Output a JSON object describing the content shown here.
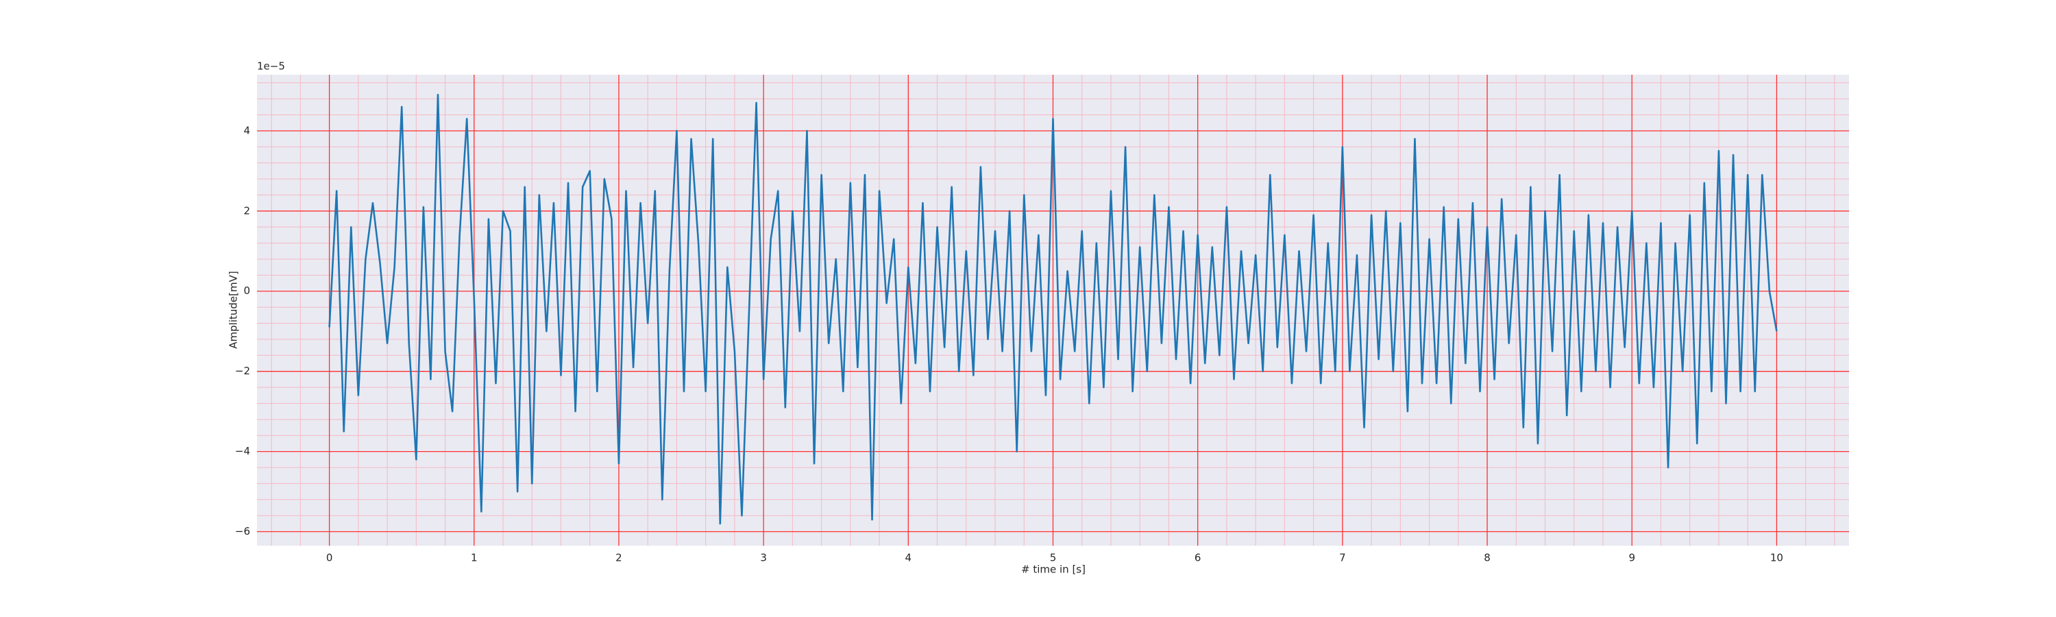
{
  "chart_data": {
    "type": "line",
    "x_label": "# time in [s]",
    "y_label": "Amplitude[mV]",
    "y_offset_label": "1e−5",
    "xlim": [
      -0.5,
      10.5
    ],
    "ylim": [
      -6.35,
      5.4
    ],
    "xticks": [
      0,
      1,
      2,
      3,
      4,
      5,
      6,
      7,
      8,
      9,
      10
    ],
    "yticks": [
      {
        "value": -6,
        "label": "−6"
      },
      {
        "value": -4,
        "label": "−4"
      },
      {
        "value": -2,
        "label": "−2"
      },
      0,
      2,
      4
    ],
    "x_minor_ticks": [
      -0.4,
      -0.2,
      0.2,
      0.4,
      0.6,
      0.8,
      1.2,
      1.4,
      1.6,
      1.8,
      2.2,
      2.4,
      2.6,
      2.8,
      3.2,
      3.4,
      3.6,
      3.8,
      4.2,
      4.4,
      4.6,
      4.8,
      5.2,
      5.4,
      5.6,
      5.8,
      6.2,
      6.4,
      6.6,
      6.8,
      7.2,
      7.4,
      7.6,
      7.8,
      8.2,
      8.4,
      8.6,
      8.8,
      9.2,
      9.4,
      9.6,
      9.8,
      10.2,
      10.4
    ],
    "y_minor_ticks": [
      -5.6,
      -5.2,
      -4.8,
      -4.4,
      -3.6,
      -3.2,
      -2.8,
      -2.4,
      -1.6,
      -1.2,
      -0.8,
      -0.4,
      0.4,
      0.8,
      1.2,
      1.6,
      2.4,
      2.8,
      3.2,
      3.6,
      4.4,
      4.8,
      5.2
    ],
    "grid": true,
    "grid_color": "#ff3030",
    "minor_grid_color": "#f5b8c4",
    "background": "#eaeaf2",
    "series": [
      {
        "color": "#1f77b4",
        "x": [
          0,
          0.05,
          0.1,
          0.15,
          0.2,
          0.25,
          0.3,
          0.35,
          0.4,
          0.45,
          0.5,
          0.55,
          0.6,
          0.65,
          0.7,
          0.75,
          0.8,
          0.85,
          0.9,
          0.95,
          1,
          1.05,
          1.1,
          1.15,
          1.2,
          1.25,
          1.3,
          1.35,
          1.4,
          1.45,
          1.5,
          1.55,
          1.6,
          1.65,
          1.7,
          1.75,
          1.8,
          1.85,
          1.9,
          1.95,
          2,
          2.05,
          2.1,
          2.15,
          2.2,
          2.25,
          2.3,
          2.35,
          2.4,
          2.45,
          2.5,
          2.55,
          2.6,
          2.65,
          2.7,
          2.75,
          2.8,
          2.85,
          2.9,
          2.95,
          3,
          3.05,
          3.1,
          3.15,
          3.2,
          3.25,
          3.3,
          3.35,
          3.4,
          3.45,
          3.5,
          3.55,
          3.6,
          3.65,
          3.7,
          3.75,
          3.8,
          3.85,
          3.9,
          3.95,
          4,
          4.05,
          4.1,
          4.15,
          4.2,
          4.25,
          4.3,
          4.35,
          4.4,
          4.45,
          4.5,
          4.55,
          4.6,
          4.65,
          4.7,
          4.75,
          4.8,
          4.85,
          4.9,
          4.95,
          5,
          5.05,
          5.1,
          5.15,
          5.2,
          5.25,
          5.3,
          5.35,
          5.4,
          5.45,
          5.5,
          5.55,
          5.6,
          5.65,
          5.7,
          5.75,
          5.8,
          5.85,
          5.9,
          5.95,
          6,
          6.05,
          6.1,
          6.15,
          6.2,
          6.25,
          6.3,
          6.35,
          6.4,
          6.45,
          6.5,
          6.55,
          6.6,
          6.65,
          6.7,
          6.75,
          6.8,
          6.85,
          6.9,
          6.95,
          7,
          7.05,
          7.1,
          7.15,
          7.2,
          7.25,
          7.3,
          7.35,
          7.4,
          7.45,
          7.5,
          7.55,
          7.6,
          7.65,
          7.7,
          7.75,
          7.8,
          7.85,
          7.9,
          7.95,
          8,
          8.05,
          8.1,
          8.15,
          8.2,
          8.25,
          8.3,
          8.35,
          8.4,
          8.45,
          8.5,
          8.55,
          8.6,
          8.65,
          8.7,
          8.75,
          8.8,
          8.85,
          8.9,
          8.95,
          9,
          9.05,
          9.1,
          9.15,
          9.2,
          9.25,
          9.3,
          9.35,
          9.4,
          9.45,
          9.5,
          9.55,
          9.6,
          9.65,
          9.7,
          9.75,
          9.8,
          9.85,
          9.9,
          9.95,
          10
        ],
        "values": [
          -0.9,
          2.5,
          -3.5,
          1.6,
          -2.6,
          0.8,
          2.2,
          0.7,
          -1.3,
          0.6,
          4.6,
          -1.3,
          -4.2,
          2.1,
          -2.2,
          4.9,
          -1.5,
          -3.0,
          1.4,
          4.3,
          -0.2,
          -5.5,
          1.8,
          -2.3,
          2.0,
          1.5,
          -5.0,
          2.6,
          -4.8,
          2.4,
          -1.0,
          2.2,
          -2.1,
          2.7,
          -3.0,
          2.6,
          3.0,
          -2.5,
          2.8,
          1.8,
          -4.3,
          2.5,
          -1.9,
          2.2,
          -0.8,
          2.5,
          -5.2,
          0.5,
          4.0,
          -2.5,
          3.8,
          1.2,
          -2.5,
          3.8,
          -5.8,
          0.6,
          -1.5,
          -5.6,
          -0.5,
          4.7,
          -2.2,
          1.3,
          2.5,
          -2.9,
          2.0,
          -1.0,
          4.0,
          -4.3,
          2.9,
          -1.3,
          0.8,
          -2.5,
          2.7,
          -1.9,
          2.9,
          -5.7,
          2.5,
          -0.3,
          1.3,
          -2.8,
          0.6,
          -1.8,
          2.2,
          -2.5,
          1.6,
          -1.4,
          2.6,
          -2.0,
          1.0,
          -2.1,
          3.1,
          -1.2,
          1.5,
          -1.5,
          2.0,
          -4.0,
          2.4,
          -1.5,
          1.4,
          -2.6,
          4.3,
          -2.2,
          0.5,
          -1.5,
          1.5,
          -2.8,
          1.2,
          -2.4,
          2.5,
          -1.7,
          3.6,
          -2.5,
          1.1,
          -2.0,
          2.4,
          -1.3,
          2.1,
          -1.7,
          1.5,
          -2.3,
          1.4,
          -1.8,
          1.1,
          -1.6,
          2.1,
          -2.2,
          1.0,
          -1.3,
          0.9,
          -2.0,
          2.9,
          -1.4,
          1.4,
          -2.3,
          1.0,
          -1.5,
          1.9,
          -2.3,
          1.2,
          -2.0,
          3.6,
          -2.0,
          0.9,
          -3.4,
          1.9,
          -1.7,
          2.0,
          -2.0,
          1.7,
          -3.0,
          3.8,
          -2.3,
          1.3,
          -2.3,
          2.1,
          -2.8,
          1.8,
          -1.8,
          2.2,
          -2.5,
          1.6,
          -2.2,
          2.3,
          -1.3,
          1.4,
          -3.4,
          2.6,
          -3.8,
          2.0,
          -1.5,
          2.9,
          -3.1,
          1.5,
          -2.5,
          1.9,
          -2.0,
          1.7,
          -2.4,
          1.6,
          -1.4,
          2.0,
          -2.3,
          1.2,
          -2.4,
          1.7,
          -4.4,
          1.2,
          -2.0,
          1.9,
          -3.8,
          2.7,
          -2.5,
          3.5,
          -2.8,
          3.4,
          -2.5,
          2.9,
          -2.5,
          2.9,
          0.0,
          -1.0
        ]
      }
    ]
  }
}
